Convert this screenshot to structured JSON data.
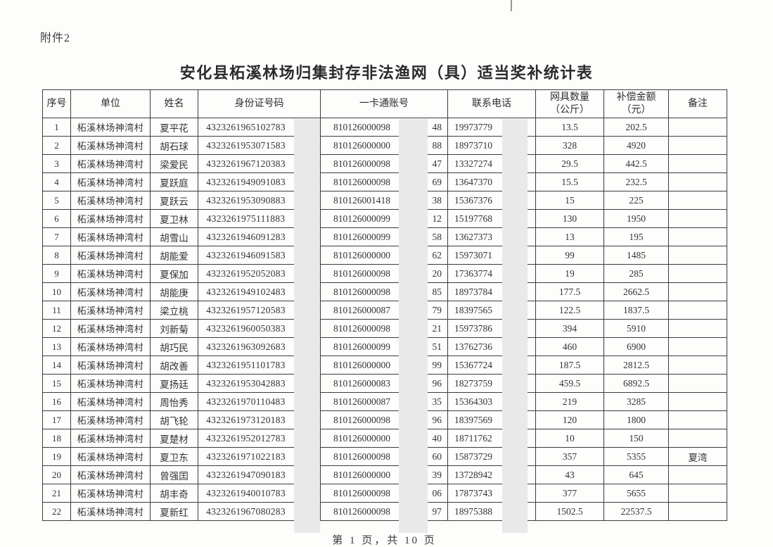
{
  "page": {
    "attachment_label": "附件2",
    "title": "安化县柘溪林场归集封存非法渔网（具）适当奖补统计表",
    "footer": "第 1 页，共 10 页"
  },
  "colors": {
    "paper": "#fdfdfc",
    "border": "#3c3c3c",
    "redaction_stripe": "#e9e9e9",
    "text": "#2f2f2f"
  },
  "redactions": {
    "note": "light-gray stripes cover trailing digits of ID numbers, middle digits of account numbers, trailing digits of phone numbers",
    "columns_redacted": [
      "身份证号码",
      "一卡通账号",
      "联系电话"
    ]
  },
  "table": {
    "columns": [
      {
        "label": "序号"
      },
      {
        "label": "单位"
      },
      {
        "label": "姓名"
      },
      {
        "label": "身份证号码"
      },
      {
        "label": "一卡通账号"
      },
      {
        "label": "联系电话"
      },
      {
        "label": "网具数量",
        "sub": "（公斤）"
      },
      {
        "label": "补偿金额",
        "sub": "（元）"
      },
      {
        "label": "备注"
      }
    ],
    "rows": [
      {
        "no": "1",
        "unit": "柘溪林场神湾村",
        "name": "夏平花",
        "id": "4323261965102783",
        "acct_prefix": "810126000098",
        "acct_suffix": "48",
        "phone": "19973779",
        "qty": "13.5",
        "amount": "202.5",
        "remark": ""
      },
      {
        "no": "2",
        "unit": "柘溪林场神湾村",
        "name": "胡石球",
        "id": "4323261953071583",
        "acct_prefix": "810126000000",
        "acct_suffix": "88",
        "phone": "18973710",
        "qty": "328",
        "amount": "4920",
        "remark": ""
      },
      {
        "no": "3",
        "unit": "柘溪林场神湾村",
        "name": "梁爱民",
        "id": "4323261967120383",
        "acct_prefix": "810126000098",
        "acct_suffix": "47",
        "phone": "13327274",
        "qty": "29.5",
        "amount": "442.5",
        "remark": ""
      },
      {
        "no": "4",
        "unit": "柘溪林场神湾村",
        "name": "夏跃庭",
        "id": "4323261949091083",
        "acct_prefix": "810126000098",
        "acct_suffix": "69",
        "phone": "13647370",
        "qty": "15.5",
        "amount": "232.5",
        "remark": ""
      },
      {
        "no": "5",
        "unit": "柘溪林场神湾村",
        "name": "夏跃云",
        "id": "4323261953090883",
        "acct_prefix": "810126001418",
        "acct_suffix": "38",
        "phone": "15367376",
        "qty": "15",
        "amount": "225",
        "remark": ""
      },
      {
        "no": "6",
        "unit": "柘溪林场神湾村",
        "name": "夏卫林",
        "id": "4323261975111883",
        "acct_prefix": "810126000099",
        "acct_suffix": "12",
        "phone": "15197768",
        "qty": "130",
        "amount": "1950",
        "remark": ""
      },
      {
        "no": "7",
        "unit": "柘溪林场神湾村",
        "name": "胡雪山",
        "id": "4323261946091283",
        "acct_prefix": "810126000099",
        "acct_suffix": "58",
        "phone": "13627373",
        "qty": "13",
        "amount": "195",
        "remark": ""
      },
      {
        "no": "8",
        "unit": "柘溪林场神湾村",
        "name": "胡能爱",
        "id": "4323261946091583",
        "acct_prefix": "810126000000",
        "acct_suffix": "62",
        "phone": "15973071",
        "qty": "99",
        "amount": "1485",
        "remark": ""
      },
      {
        "no": "9",
        "unit": "柘溪林场神湾村",
        "name": "夏保加",
        "id": "4323261952052083",
        "acct_prefix": "810126000098",
        "acct_suffix": "20",
        "phone": "17363774",
        "qty": "19",
        "amount": "285",
        "remark": ""
      },
      {
        "no": "10",
        "unit": "柘溪林场神湾村",
        "name": "胡能庚",
        "id": "4323261949102483",
        "acct_prefix": "810126000098",
        "acct_suffix": "85",
        "phone": "18973784",
        "qty": "177.5",
        "amount": "2662.5",
        "remark": ""
      },
      {
        "no": "11",
        "unit": "柘溪林场神湾村",
        "name": "梁立桃",
        "id": "4323261957120583",
        "acct_prefix": "810126000087",
        "acct_suffix": "79",
        "phone": "18397565",
        "qty": "122.5",
        "amount": "1837.5",
        "remark": ""
      },
      {
        "no": "12",
        "unit": "柘溪林场神湾村",
        "name": "刘新菊",
        "id": "4323261960050383",
        "acct_prefix": "810126000098",
        "acct_suffix": "21",
        "phone": "15973786",
        "qty": "394",
        "amount": "5910",
        "remark": ""
      },
      {
        "no": "13",
        "unit": "柘溪林场神湾村",
        "name": "胡巧民",
        "id": "4323261963092683",
        "acct_prefix": "810126000099",
        "acct_suffix": "51",
        "phone": "13762736",
        "qty": "460",
        "amount": "6900",
        "remark": ""
      },
      {
        "no": "14",
        "unit": "柘溪林场神湾村",
        "name": "胡改善",
        "id": "4323261951101783",
        "acct_prefix": "810126000000",
        "acct_suffix": "99",
        "phone": "15367724",
        "qty": "187.5",
        "amount": "2812.5",
        "remark": ""
      },
      {
        "no": "15",
        "unit": "柘溪林场神湾村",
        "name": "夏扬廷",
        "id": "4323261953042883",
        "acct_prefix": "810126000083",
        "acct_suffix": "96",
        "phone": "18273759",
        "qty": "459.5",
        "amount": "6892.5",
        "remark": ""
      },
      {
        "no": "16",
        "unit": "柘溪林场神湾村",
        "name": "周怡秀",
        "id": "4323261970110483",
        "acct_prefix": "810126000087",
        "acct_suffix": "35",
        "phone": "15364303",
        "qty": "219",
        "amount": "3285",
        "remark": ""
      },
      {
        "no": "17",
        "unit": "柘溪林场神湾村",
        "name": "胡飞轮",
        "id": "4323261973120183",
        "acct_prefix": "810126000098",
        "acct_suffix": "96",
        "phone": "18397569",
        "qty": "120",
        "amount": "1800",
        "remark": ""
      },
      {
        "no": "18",
        "unit": "柘溪林场神湾村",
        "name": "夏楚材",
        "id": "4323261952012783",
        "acct_prefix": "810126000000",
        "acct_suffix": "40",
        "phone": "18711762",
        "qty": "10",
        "amount": "150",
        "remark": ""
      },
      {
        "no": "19",
        "unit": "柘溪林场神湾村",
        "name": "夏卫东",
        "id": "4323261971022183",
        "acct_prefix": "810126000098",
        "acct_suffix": "60",
        "phone": "15873729",
        "qty": "357",
        "amount": "5355",
        "remark": "夏湾"
      },
      {
        "no": "20",
        "unit": "柘溪林场神湾村",
        "name": "曾强囯",
        "id": "4323261947090183",
        "acct_prefix": "810126000000",
        "acct_suffix": "39",
        "phone": "13728942",
        "qty": "43",
        "amount": "645",
        "remark": ""
      },
      {
        "no": "21",
        "unit": "柘溪林场神湾村",
        "name": "胡丰奇",
        "id": "4323261940010783",
        "acct_prefix": "810126000098",
        "acct_suffix": "06",
        "phone": "17873743",
        "qty": "377",
        "amount": "5655",
        "remark": ""
      },
      {
        "no": "22",
        "unit": "柘溪林场神湾村",
        "name": "夏新红",
        "id": "4323261967080283",
        "acct_prefix": "810126000098",
        "acct_suffix": "97",
        "phone": "18975388",
        "qty": "1502.5",
        "amount": "22537.5",
        "remark": ""
      }
    ]
  }
}
